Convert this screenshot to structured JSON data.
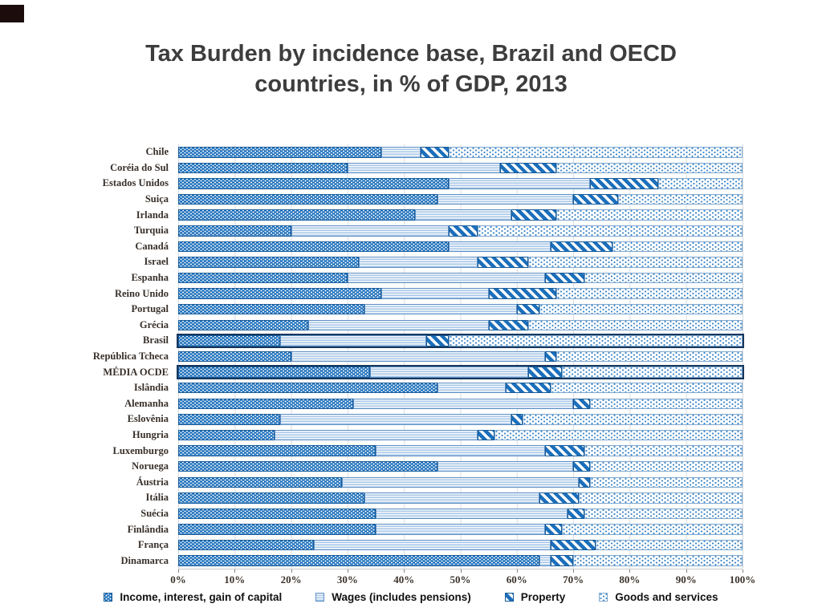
{
  "slide": {
    "title_line1": "Tax Burden by incidence base, Brazil and OECD",
    "title_line2": "countries, in % of GDP, 2013"
  },
  "chart_data": {
    "type": "bar",
    "orientation": "horizontal",
    "stacked": true,
    "units": "% (share of total tax burden)",
    "xlim": [
      0,
      100
    ],
    "x_ticks": [
      "0%",
      "10%",
      "20%",
      "30%",
      "40%",
      "50%",
      "60%",
      "70%",
      "80%",
      "90%",
      "100%"
    ],
    "grid": "vertical gridlines every 10%",
    "legend_position": "bottom",
    "series": [
      {
        "name": "Income, interest, gain of capital",
        "pattern": "white-dots-on-blue"
      },
      {
        "name": "Wages (includes pensions)",
        "pattern": "horizontal-light-blue-stripes"
      },
      {
        "name": "Property",
        "pattern": "diagonal-blue-stripes"
      },
      {
        "name": "Goods and services",
        "pattern": "blue-dot-grid-on-white"
      }
    ],
    "rows": [
      {
        "country": "Chile",
        "values": [
          36,
          7,
          5,
          52
        ],
        "highlight": false
      },
      {
        "country": "Coréia do Sul",
        "values": [
          30,
          27,
          10,
          33
        ],
        "highlight": false
      },
      {
        "country": "Estados Unidos",
        "values": [
          48,
          25,
          12,
          15
        ],
        "highlight": false
      },
      {
        "country": "Suiça",
        "values": [
          46,
          24,
          8,
          22
        ],
        "highlight": false
      },
      {
        "country": "Irlanda",
        "values": [
          42,
          17,
          8,
          33
        ],
        "highlight": false
      },
      {
        "country": "Turquia",
        "values": [
          20,
          28,
          5,
          47
        ],
        "highlight": false
      },
      {
        "country": "Canadá",
        "values": [
          48,
          18,
          11,
          23
        ],
        "highlight": false
      },
      {
        "country": "Israel",
        "values": [
          32,
          21,
          9,
          38
        ],
        "highlight": false
      },
      {
        "country": "Espanha",
        "values": [
          30,
          35,
          7,
          28
        ],
        "highlight": false
      },
      {
        "country": "Reino Unido",
        "values": [
          36,
          19,
          12,
          33
        ],
        "highlight": false
      },
      {
        "country": "Portugal",
        "values": [
          33,
          27,
          4,
          36
        ],
        "highlight": false
      },
      {
        "country": "Grécia",
        "values": [
          23,
          32,
          7,
          38
        ],
        "highlight": false
      },
      {
        "country": "Brasil",
        "values": [
          18,
          26,
          4,
          52
        ],
        "highlight": true
      },
      {
        "country": "República Tcheca",
        "values": [
          20,
          45,
          2,
          33
        ],
        "highlight": false
      },
      {
        "country": "MÉDIA OCDE",
        "values": [
          34,
          28,
          6,
          32
        ],
        "highlight": true
      },
      {
        "country": "Islândia",
        "values": [
          46,
          12,
          8,
          34
        ],
        "highlight": false
      },
      {
        "country": "Alemanha",
        "values": [
          31,
          39,
          3,
          27
        ],
        "highlight": false
      },
      {
        "country": "Eslovênia",
        "values": [
          18,
          41,
          2,
          39
        ],
        "highlight": false
      },
      {
        "country": "Hungria",
        "values": [
          17,
          36,
          3,
          44
        ],
        "highlight": false
      },
      {
        "country": "Luxemburgo",
        "values": [
          35,
          30,
          7,
          28
        ],
        "highlight": false
      },
      {
        "country": "Noruega",
        "values": [
          46,
          24,
          3,
          27
        ],
        "highlight": false
      },
      {
        "country": "Áustria",
        "values": [
          29,
          42,
          2,
          27
        ],
        "highlight": false
      },
      {
        "country": "Itália",
        "values": [
          33,
          31,
          7,
          29
        ],
        "highlight": false
      },
      {
        "country": "Suécia",
        "values": [
          35,
          34,
          3,
          28
        ],
        "highlight": false
      },
      {
        "country": "Finlândia",
        "values": [
          35,
          30,
          3,
          32
        ],
        "highlight": false
      },
      {
        "country": "França",
        "values": [
          24,
          42,
          8,
          26
        ],
        "highlight": false
      },
      {
        "country": "Dinamarca",
        "values": [
          64,
          2,
          4,
          30
        ],
        "highlight": false
      }
    ]
  },
  "colors": {
    "bar_blue": "#1c6fbb",
    "stripe_light_blue": "#a9c7e7",
    "segment_border": "#2e6da4",
    "highlight_border": "#17375e",
    "gridline": "#d8dce1",
    "title_text": "#3d3d3d",
    "axis_text": "#3b332c",
    "legend_text": "#111111",
    "corner_accent": "#1c0c0c"
  }
}
